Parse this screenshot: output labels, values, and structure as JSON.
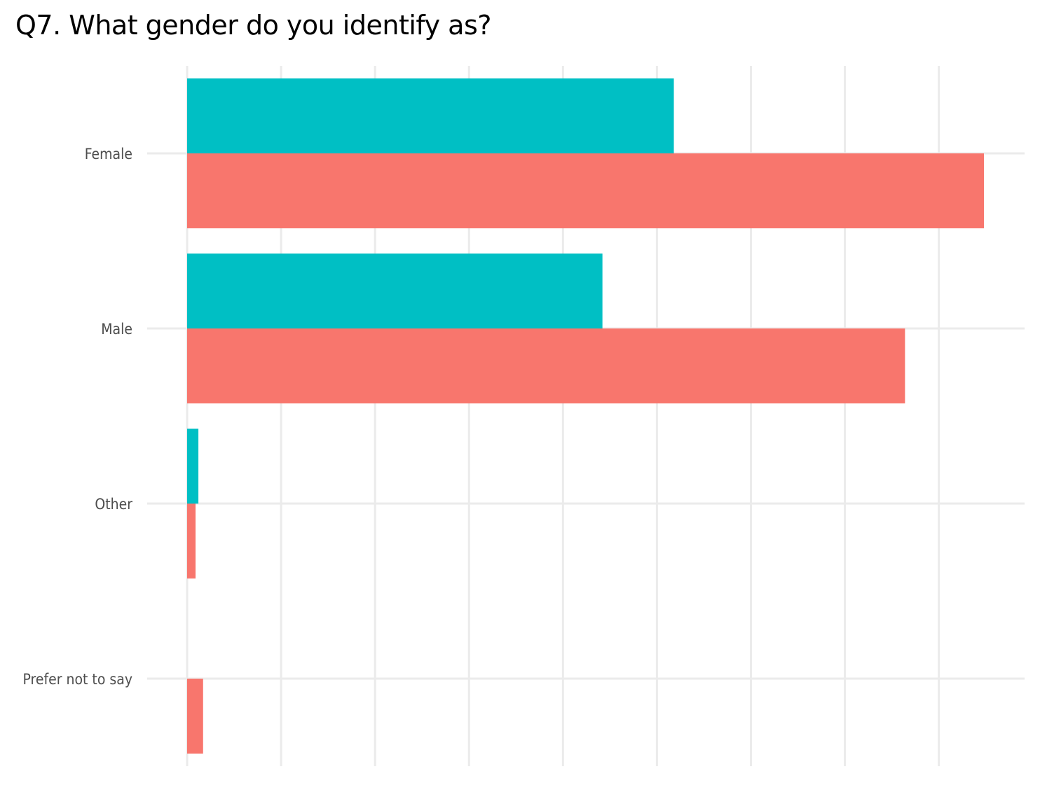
{
  "chart_data": {
    "type": "bar",
    "orientation": "horizontal",
    "title": "Q7. What gender do you identify as?",
    "xlabel": "",
    "ylabel": "",
    "categories": [
      "Female",
      "Male",
      "Other",
      "Prefer not to say"
    ],
    "series": [
      {
        "color": "#00BFC4",
        "values": [
          51.8,
          44.2,
          1.2,
          0
        ]
      },
      {
        "color": "#F8766D",
        "values": [
          84.8,
          76.4,
          0.9,
          1.7
        ]
      }
    ],
    "xlim": [
      0,
      89
    ],
    "x_gridlines": [
      0,
      10,
      20,
      30,
      40,
      50,
      60,
      70,
      80
    ],
    "grid": true,
    "legend": "none",
    "gridline_color": "#EBEBEB",
    "background": "#FFFFFF"
  }
}
